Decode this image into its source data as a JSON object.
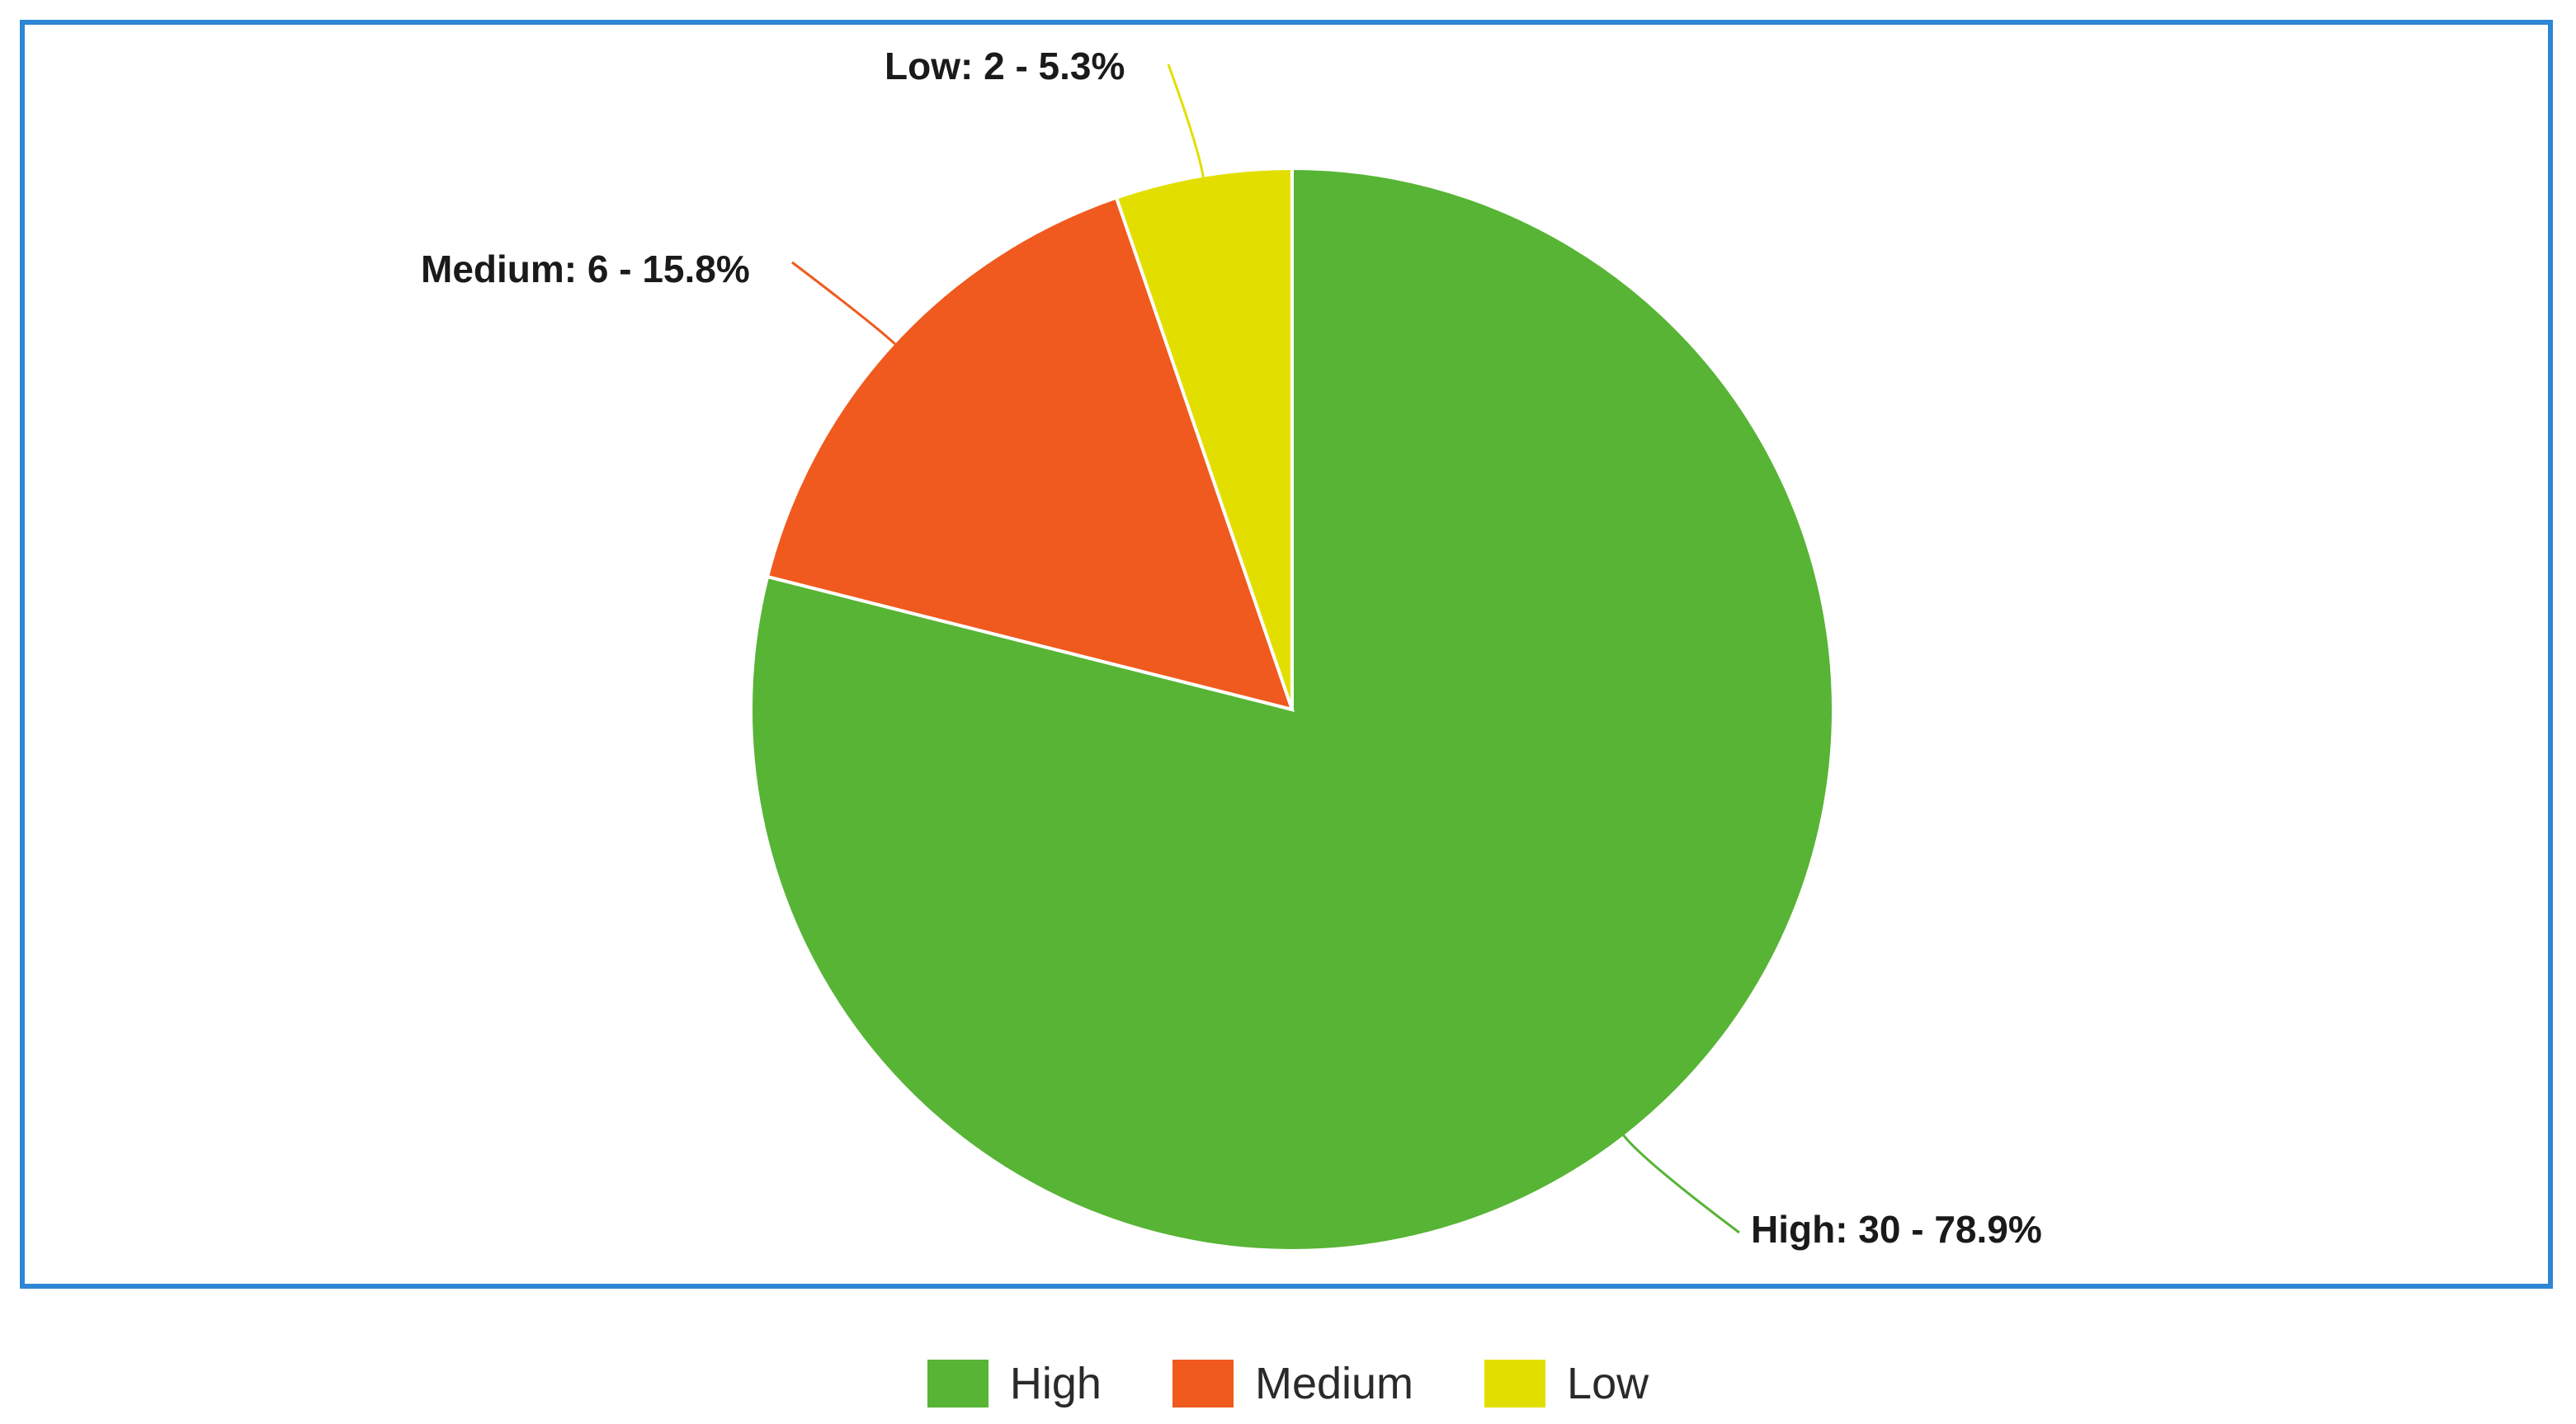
{
  "chart_data": {
    "type": "pie",
    "title": "",
    "start_angle_deg": 0,
    "direction": "clockwise",
    "slices": [
      {
        "name": "High",
        "value": 30,
        "percent": 78.9,
        "color": "#57b435",
        "label": "High: 30 - 78.9%"
      },
      {
        "name": "Medium",
        "value": 6,
        "percent": 15.8,
        "color": "#f05a1e",
        "label": "Medium: 6 - 15.8%"
      },
      {
        "name": "Low",
        "value": 2,
        "percent": 5.3,
        "color": "#e2df00",
        "label": "Low: 2 - 5.3%"
      }
    ],
    "legend": {
      "position": "bottom",
      "items": [
        {
          "label": "High",
          "color": "#57b435"
        },
        {
          "label": "Medium",
          "color": "#f05a1e"
        },
        {
          "label": "Low",
          "color": "#e2df00"
        }
      ]
    },
    "frame_color": "#2e86d6"
  }
}
